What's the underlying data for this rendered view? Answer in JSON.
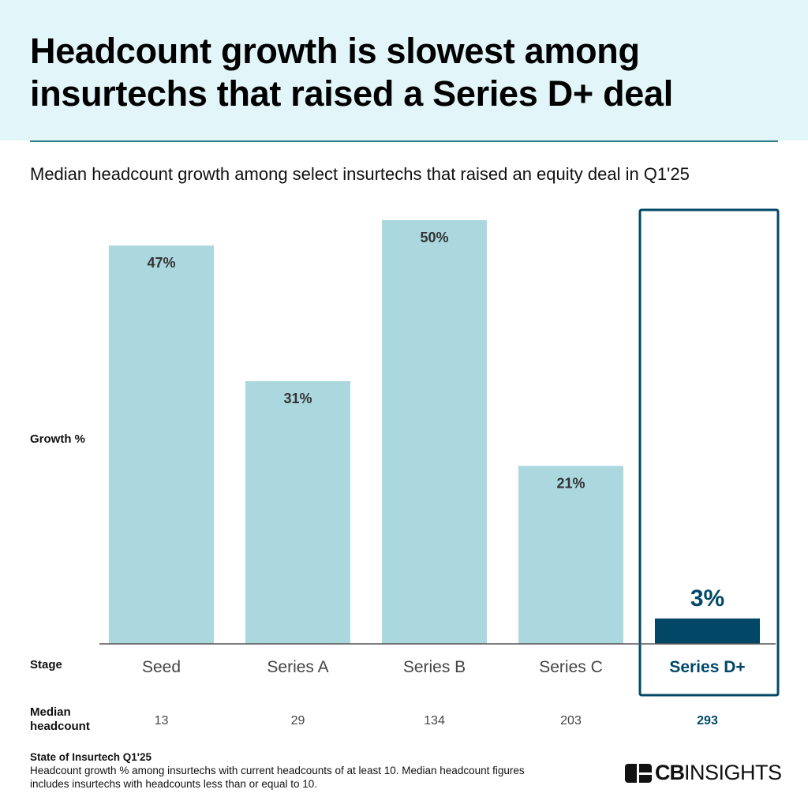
{
  "header": {
    "title_line1": "Headcount growth is slowest among",
    "title_line2": "insurtechs that raised a Series D+ deal"
  },
  "subtitle": "Median headcount growth among select insurtechs that raised an equity deal in Q1'25",
  "row_labels": {
    "growth": "Growth %",
    "stage": "Stage",
    "median_line1": "Median",
    "median_line2": "headcount"
  },
  "chart_data": {
    "type": "bar",
    "categories": [
      "Seed",
      "Series A",
      "Series B",
      "Series C",
      "Series D+"
    ],
    "values": [
      47,
      31,
      50,
      21,
      3
    ],
    "value_labels": [
      "47%",
      "31%",
      "50%",
      "21%",
      "3%"
    ],
    "median_headcount": [
      "13",
      "29",
      "134",
      "203",
      "293"
    ],
    "ylabel": "Growth %",
    "xlabel": "Stage",
    "ylim": [
      0,
      50
    ],
    "highlight": "Series D+",
    "colors": {
      "default": "#abd7df",
      "highlight": "#024866"
    },
    "grid": false
  },
  "footer": {
    "source": "State of Insurtech Q1'25",
    "note_line1": "Headcount growth % among insurtechs with current headcounts of at least 10. Median headcount figures",
    "note_line2": "includes insurtechs with headcounts less than or equal to 10."
  },
  "logo": {
    "text_bold": "CB",
    "text_light": "INSIGHTS"
  }
}
